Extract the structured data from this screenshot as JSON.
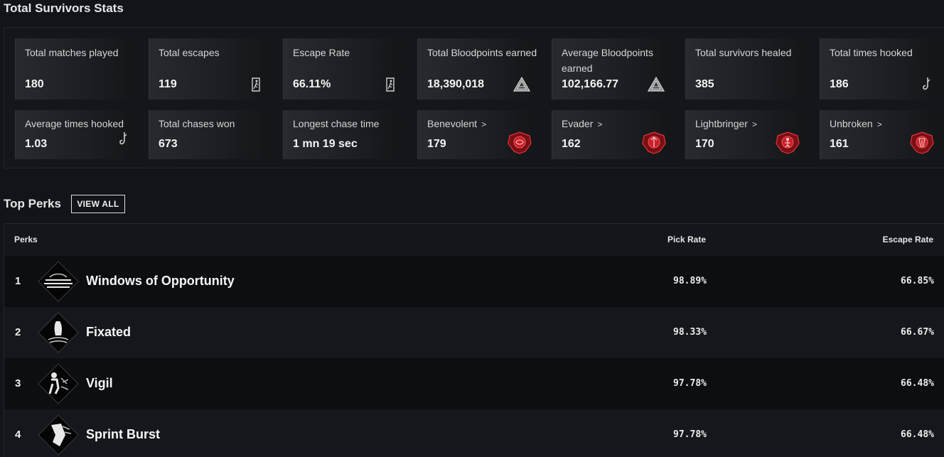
{
  "stats": {
    "title": "Total Survivors Stats",
    "cards": [
      {
        "label": "Total matches played",
        "value": "180",
        "icon": "none"
      },
      {
        "label": "Total escapes",
        "value": "119",
        "icon": "exit-door-icon"
      },
      {
        "label": "Escape Rate",
        "value": "66.11%",
        "icon": "exit-door-icon"
      },
      {
        "label": "Total Bloodpoints earned",
        "value": "18,390,018",
        "icon": "bloodpoints-icon"
      },
      {
        "label": "Average Bloodpoints earned",
        "value": "102,166.77",
        "icon": "bloodpoints-icon"
      },
      {
        "label": "Total survivors healed",
        "value": "385",
        "icon": "none"
      },
      {
        "label": "Total times hooked",
        "value": "186",
        "icon": "hook-icon"
      },
      {
        "label": "Average times hooked",
        "value": "1.03",
        "icon": "hook-icon"
      },
      {
        "label": "Total chases won",
        "value": "673",
        "icon": "none"
      },
      {
        "label": "Longest chase time",
        "value": "1 mn 19 sec",
        "icon": "none"
      },
      {
        "label": "Benevolent",
        "value": "179",
        "icon": "benevolent-badge-icon"
      },
      {
        "label": "Evader",
        "value": "162",
        "icon": "evader-badge-icon"
      },
      {
        "label": "Lightbringer",
        "value": "170",
        "icon": "lightbringer-badge-icon"
      },
      {
        "label": "Unbroken",
        "value": "161",
        "icon": "unbroken-badge-icon"
      }
    ]
  },
  "perks": {
    "title": "Top Perks",
    "view_all": "VIEW ALL",
    "columns": {
      "perks": "Perks",
      "pick_rate": "Pick Rate",
      "escape_rate": "Escape Rate"
    },
    "rows": [
      {
        "rank": "1",
        "name": "Windows of Opportunity",
        "pick_rate": "98.89%",
        "escape_rate": "66.85%"
      },
      {
        "rank": "2",
        "name": "Fixated",
        "pick_rate": "98.33%",
        "escape_rate": "66.67%"
      },
      {
        "rank": "3",
        "name": "Vigil",
        "pick_rate": "97.78%",
        "escape_rate": "66.48%"
      },
      {
        "rank": "4",
        "name": "Sprint Burst",
        "pick_rate": "97.78%",
        "escape_rate": "66.48%"
      }
    ]
  },
  "colors": {
    "background": "#111419",
    "badge_red": "#c8202a"
  }
}
